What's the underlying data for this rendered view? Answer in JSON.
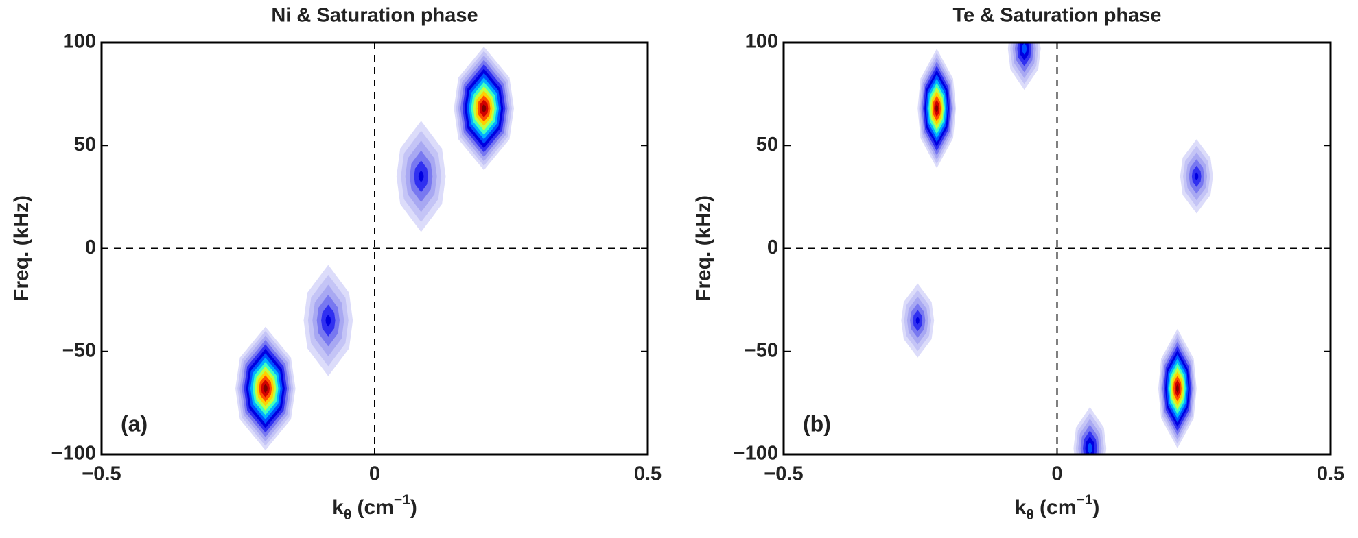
{
  "chart_data": [
    {
      "type": "contour",
      "title": "Ni & Saturation phase",
      "xlabel": [
        "k",
        "θ",
        " (cm",
        "−1",
        ")"
      ],
      "ylabel": "Freq. (kHz)",
      "annotation": "(a)",
      "xlim": [
        -0.5,
        0.5
      ],
      "ylim": [
        -100,
        100
      ],
      "xticks": [
        {
          "value": -0.5,
          "label": "−0.5"
        },
        0,
        0.5
      ],
      "yticks": [
        {
          "value": -100,
          "label": "−100"
        },
        {
          "value": -50,
          "label": "−50"
        },
        0,
        50,
        100
      ],
      "zero_lines": true,
      "spots": [
        {
          "x": 0.085,
          "y": 35,
          "amplitude": 0.4,
          "sx": 0.045,
          "sy": 27
        },
        {
          "x": 0.2,
          "y": 68,
          "amplitude": 1,
          "sx": 0.055,
          "sy": 30
        },
        {
          "x": -0.085,
          "y": -35,
          "amplitude": 0.4,
          "sx": 0.045,
          "sy": 27
        },
        {
          "x": -0.2,
          "y": -68,
          "amplitude": 1,
          "sx": 0.055,
          "sy": 30
        }
      ]
    },
    {
      "type": "contour",
      "title": "Te & Saturation phase",
      "xlabel": [
        "k",
        "θ",
        " (cm",
        "−1",
        ")"
      ],
      "ylabel": "Freq. (kHz)",
      "annotation": "(b)",
      "xlim": [
        -0.5,
        0.5
      ],
      "ylim": [
        -100,
        100
      ],
      "xticks": [
        {
          "value": -0.5,
          "label": "−0.5"
        },
        0,
        0.5
      ],
      "yticks": [
        {
          "value": -100,
          "label": "−100"
        },
        {
          "value": -50,
          "label": "−50"
        },
        0,
        50,
        100
      ],
      "zero_lines": true,
      "spots": [
        {
          "x": -0.22,
          "y": 68,
          "amplitude": 1,
          "sx": 0.035,
          "sy": 29
        },
        {
          "x": -0.06,
          "y": 97,
          "amplitude": 0.5,
          "sx": 0.03,
          "sy": 20
        },
        {
          "x": 0.255,
          "y": 35,
          "amplitude": 0.4,
          "sx": 0.03,
          "sy": 18
        },
        {
          "x": -0.255,
          "y": -35,
          "amplitude": 0.4,
          "sx": 0.03,
          "sy": 18
        },
        {
          "x": 0.22,
          "y": -68,
          "amplitude": 1,
          "sx": 0.035,
          "sy": 29
        },
        {
          "x": 0.06,
          "y": -97,
          "amplitude": 0.5,
          "sx": 0.03,
          "sy": 20
        }
      ]
    }
  ],
  "level_colors": [
    "#dcdcfa",
    "#c4c4f6",
    "#a8a8f2",
    "#7878f0",
    "#3030f0",
    "#0000e0",
    "#0050ff",
    "#00b0ff",
    "#40ffc0",
    "#c0ff40",
    "#ffd000",
    "#ff5000",
    "#d00000",
    "#800000"
  ]
}
